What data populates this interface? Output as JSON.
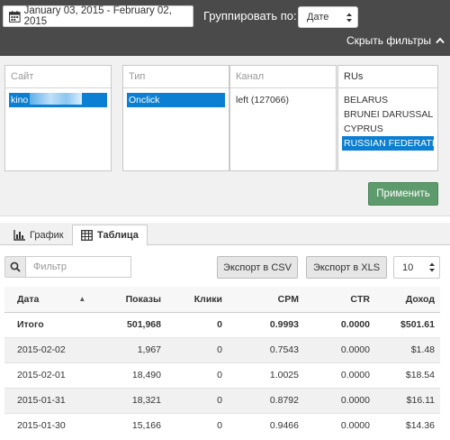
{
  "header": {
    "date_range": "January 03, 2015 - February 02, 2015",
    "group_by_label": "Группировать по:",
    "group_by_value": "Дате",
    "hide_filters": "Скрыть фильтры"
  },
  "filters": {
    "site": {
      "header": "Сайт",
      "items": [
        {
          "label": "kino",
          "selected": true
        }
      ]
    },
    "type": {
      "header": "Тип",
      "items": [
        {
          "label": "Onclick",
          "selected": true
        }
      ]
    },
    "channel": {
      "header": "Канал",
      "items": [
        {
          "label": "left (127066)",
          "selected": false
        }
      ]
    },
    "country": {
      "header": "RUs",
      "items": [
        {
          "label": "BELARUS",
          "selected": false
        },
        {
          "label": "BRUNEI DARUSSAL...",
          "selected": false
        },
        {
          "label": "CYPRUS",
          "selected": false
        },
        {
          "label": "RUSSIAN FEDERATI...",
          "selected": true
        }
      ]
    },
    "apply_label": "Применить"
  },
  "tabs": [
    {
      "label": "График",
      "icon": "bar-chart-icon",
      "active": false
    },
    {
      "label": "Таблица",
      "icon": "table-icon",
      "active": true
    }
  ],
  "toolbar": {
    "filter_placeholder": "Фильтр",
    "export_csv": "Экспорт в CSV",
    "export_xls": "Экспорт в XLS",
    "page_size": "10"
  },
  "table": {
    "columns": [
      "Дата",
      "Показы",
      "Клики",
      "CPM",
      "CTR",
      "Доход"
    ],
    "sort_column": "Дата",
    "sort_direction": "asc",
    "total": {
      "label": "Итого",
      "shows": "501,968",
      "clicks": "0",
      "cpm": "0.9993",
      "ctr": "0.0000",
      "income": "$501.61"
    },
    "rows": [
      {
        "date": "2015-02-02",
        "shows": "1,967",
        "clicks": "0",
        "cpm": "0.7543",
        "ctr": "0.0000",
        "income": "$1.48"
      },
      {
        "date": "2015-02-01",
        "shows": "18,490",
        "clicks": "0",
        "cpm": "1.0025",
        "ctr": "0.0000",
        "income": "$18.54"
      },
      {
        "date": "2015-01-31",
        "shows": "18,321",
        "clicks": "0",
        "cpm": "0.8792",
        "ctr": "0.0000",
        "income": "$16.11"
      },
      {
        "date": "2015-01-30",
        "shows": "15,166",
        "clicks": "0",
        "cpm": "0.9466",
        "ctr": "0.0000",
        "income": "$14.36"
      }
    ]
  },
  "colors": {
    "topbar": "#4a4a4a",
    "selection": "#0b7fd1",
    "apply_button": "#5e9b6c",
    "filter_background": "#f1f1f1"
  }
}
